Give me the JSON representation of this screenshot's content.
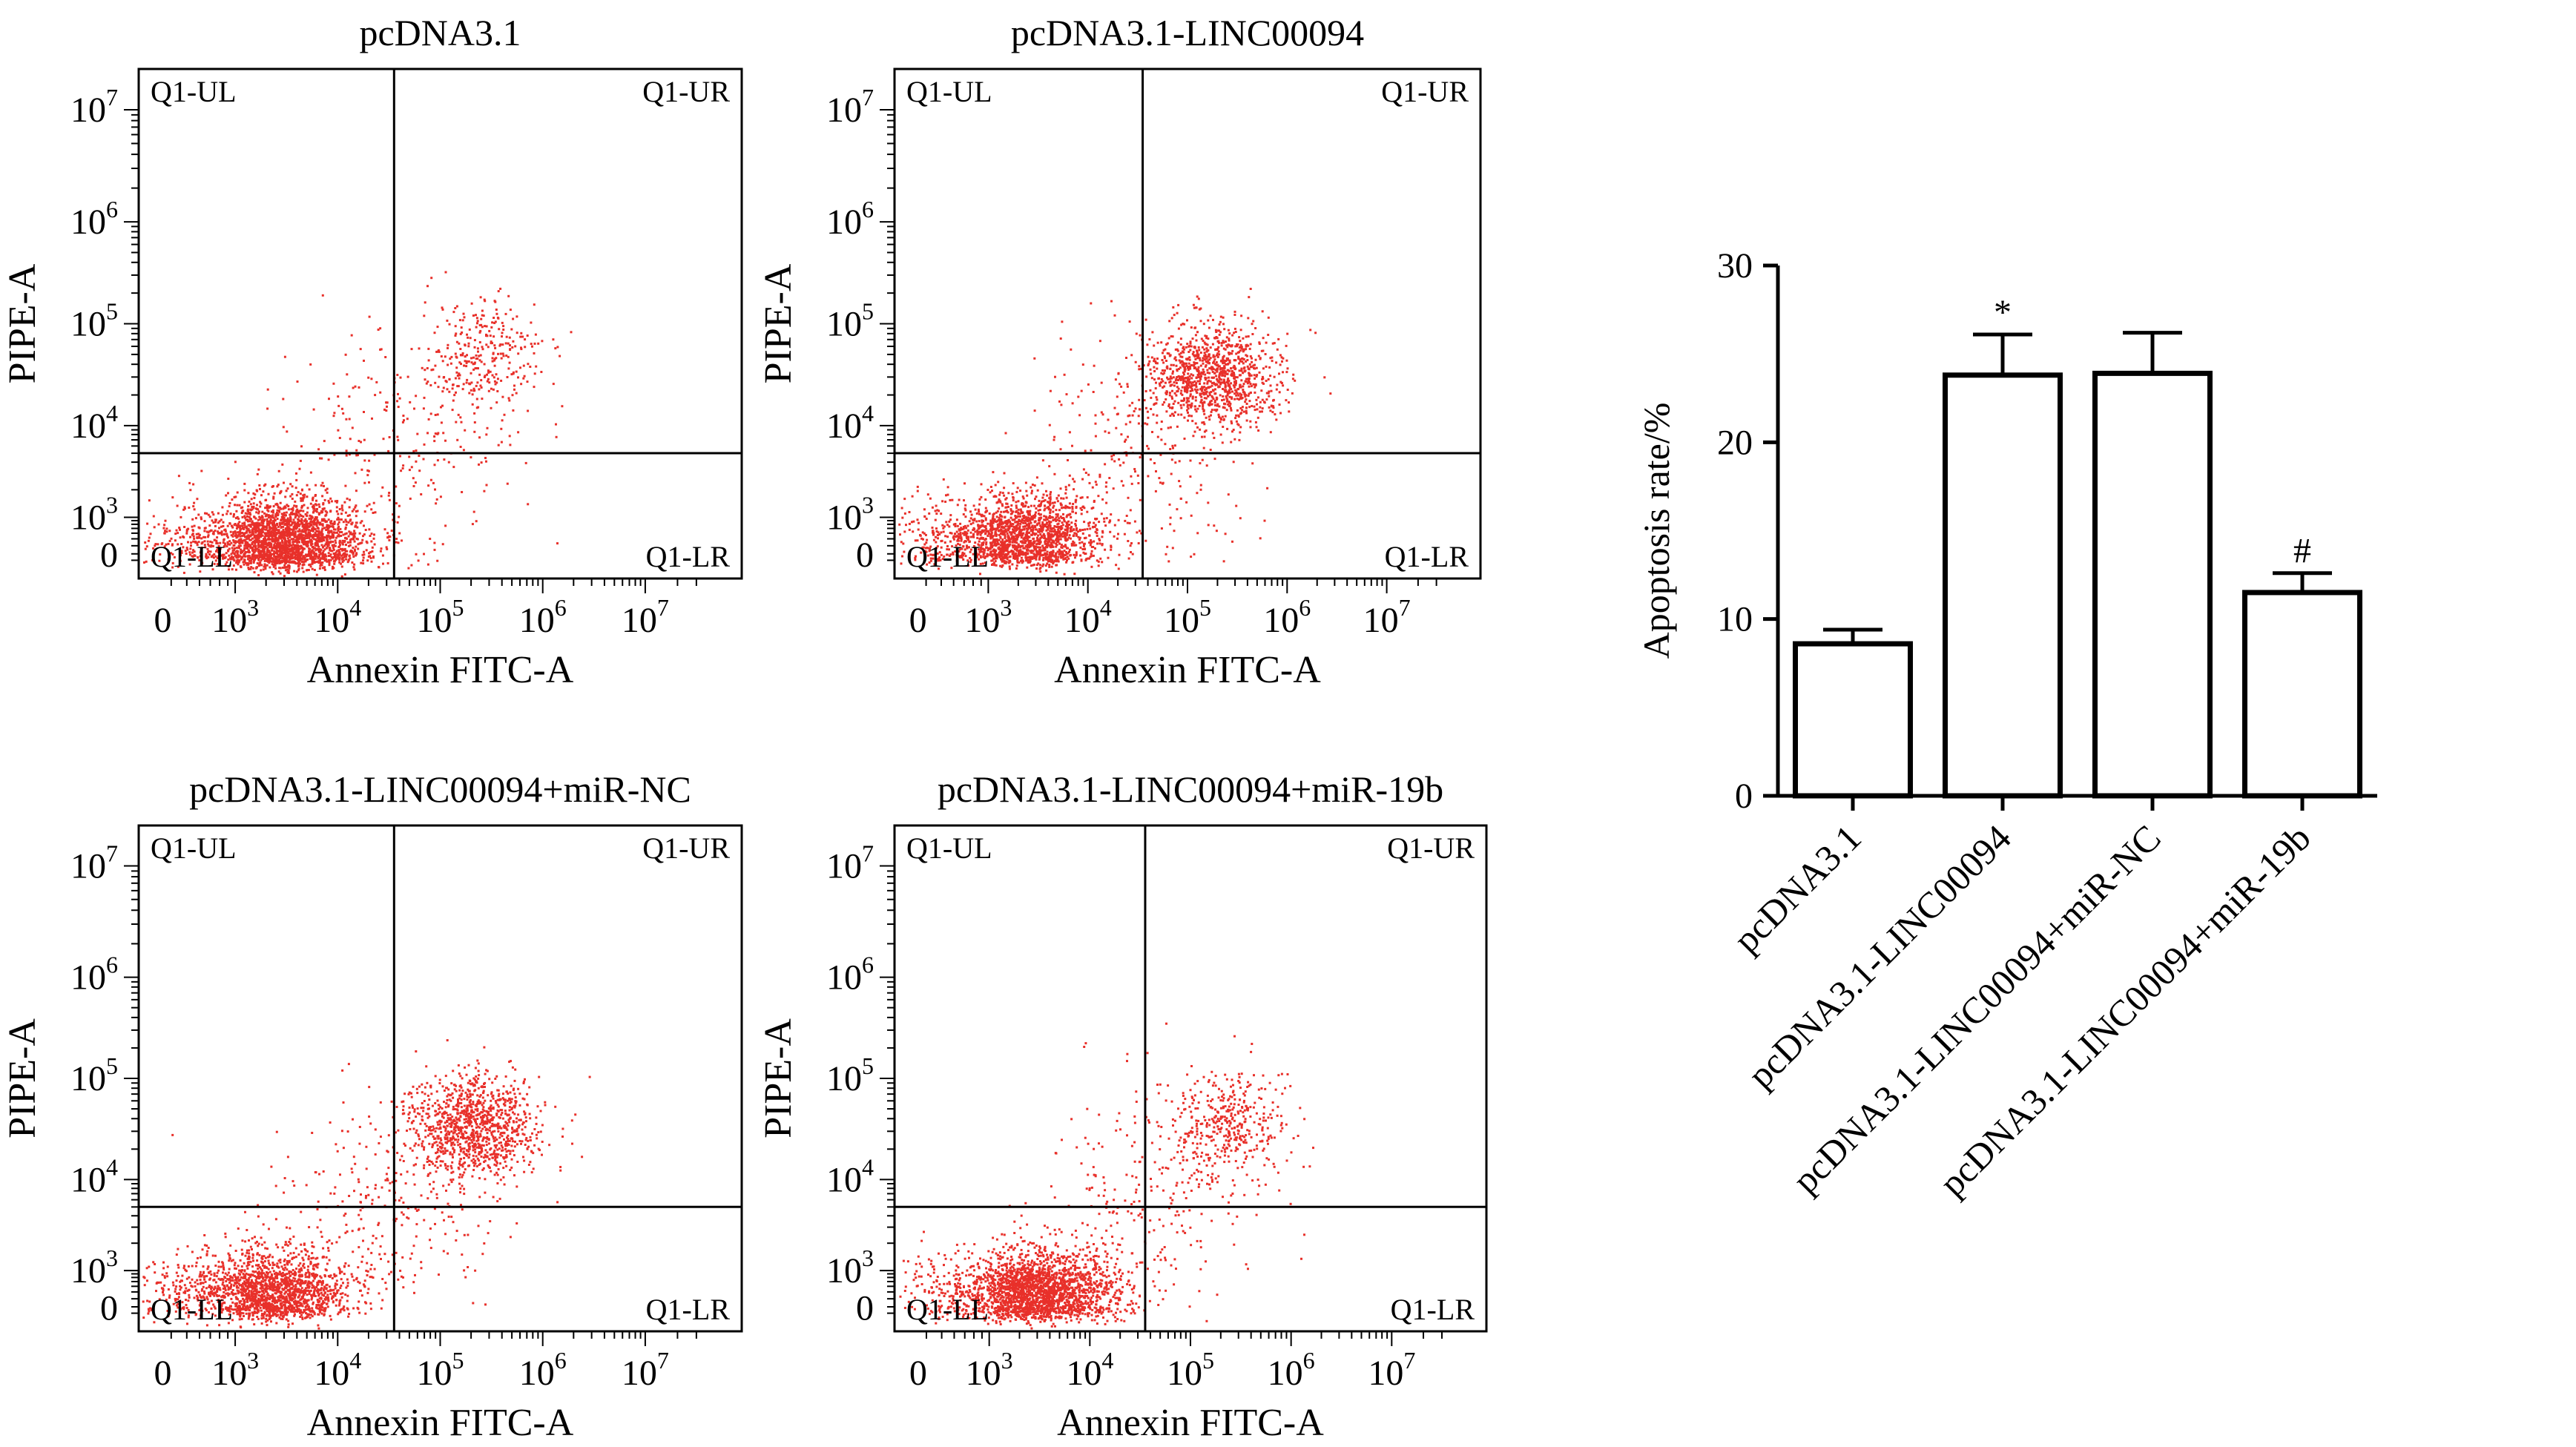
{
  "chart_data": [
    {
      "type": "scatter",
      "title": "pcDNA3.1",
      "xlabel": "Annexin FITC-A",
      "ylabel": "PIPE-A",
      "xticks": [
        {
          "base": "0",
          "exp": ""
        },
        {
          "base": "10",
          "exp": "3"
        },
        {
          "base": "10",
          "exp": "4"
        },
        {
          "base": "10",
          "exp": "5"
        },
        {
          "base": "10",
          "exp": "6"
        },
        {
          "base": "10",
          "exp": "7"
        }
      ],
      "yticks": [
        {
          "base": "0",
          "exp": ""
        },
        {
          "base": "10",
          "exp": "3"
        },
        {
          "base": "10",
          "exp": "4"
        },
        {
          "base": "10",
          "exp": "5"
        },
        {
          "base": "10",
          "exp": "6"
        },
        {
          "base": "10",
          "exp": "7"
        }
      ],
      "quadrants": {
        "ul": "Q1-UL",
        "ur": "Q1-UR",
        "ll": "Q1-LL",
        "lr": "Q1-LR"
      },
      "gate": {
        "x_decade": 4.55,
        "y_decade": 3.7
      },
      "point_color": "#e8302a",
      "clusters": [
        {
          "cx_decade": 3.45,
          "cy_decade": 2.7,
          "sx": 0.42,
          "sy": 0.28,
          "n": 2600
        },
        {
          "cx_decade": 5.4,
          "cy_decade": 4.7,
          "sx": 0.3,
          "sy": 0.26,
          "n": 320
        },
        {
          "cx_decade": 4.6,
          "cy_decade": 3.9,
          "sx": 0.55,
          "sy": 0.55,
          "n": 220
        }
      ]
    },
    {
      "type": "scatter",
      "title": "pcDNA3.1-LINC00094",
      "xlabel": "Annexin FITC-A",
      "ylabel": "PIPE-A",
      "xticks": [
        {
          "base": "0",
          "exp": ""
        },
        {
          "base": "10",
          "exp": "3"
        },
        {
          "base": "10",
          "exp": "4"
        },
        {
          "base": "10",
          "exp": "5"
        },
        {
          "base": "10",
          "exp": "6"
        },
        {
          "base": "10",
          "exp": "7"
        }
      ],
      "yticks": [
        {
          "base": "0",
          "exp": ""
        },
        {
          "base": "10",
          "exp": "3"
        },
        {
          "base": "10",
          "exp": "4"
        },
        {
          "base": "10",
          "exp": "5"
        },
        {
          "base": "10",
          "exp": "6"
        },
        {
          "base": "10",
          "exp": "7"
        }
      ],
      "quadrants": {
        "ul": "Q1-UL",
        "ur": "Q1-UR",
        "ll": "Q1-LL",
        "lr": "Q1-LR"
      },
      "gate": {
        "x_decade": 4.55,
        "y_decade": 3.7
      },
      "point_color": "#e8302a",
      "clusters": [
        {
          "cx_decade": 3.3,
          "cy_decade": 2.75,
          "sx": 0.4,
          "sy": 0.27,
          "n": 1900
        },
        {
          "cx_decade": 5.25,
          "cy_decade": 4.5,
          "sx": 0.33,
          "sy": 0.25,
          "n": 1100
        },
        {
          "cx_decade": 4.5,
          "cy_decade": 3.7,
          "sx": 0.55,
          "sy": 0.55,
          "n": 260
        }
      ]
    },
    {
      "type": "scatter",
      "title": "pcDNA3.1-LINC00094+miR-NC",
      "xlabel": "Annexin FITC-A",
      "ylabel": "PIPE-A",
      "xticks": [
        {
          "base": "0",
          "exp": ""
        },
        {
          "base": "10",
          "exp": "3"
        },
        {
          "base": "10",
          "exp": "4"
        },
        {
          "base": "10",
          "exp": "5"
        },
        {
          "base": "10",
          "exp": "6"
        },
        {
          "base": "10",
          "exp": "7"
        }
      ],
      "yticks": [
        {
          "base": "0",
          "exp": ""
        },
        {
          "base": "10",
          "exp": "3"
        },
        {
          "base": "10",
          "exp": "4"
        },
        {
          "base": "10",
          "exp": "5"
        },
        {
          "base": "10",
          "exp": "6"
        },
        {
          "base": "10",
          "exp": "7"
        }
      ],
      "quadrants": {
        "ul": "Q1-UL",
        "ur": "Q1-UR",
        "ll": "Q1-LL",
        "lr": "Q1-LR"
      },
      "gate": {
        "x_decade": 4.55,
        "y_decade": 3.7
      },
      "point_color": "#e8302a",
      "clusters": [
        {
          "cx_decade": 3.3,
          "cy_decade": 2.72,
          "sx": 0.4,
          "sy": 0.27,
          "n": 1900
        },
        {
          "cx_decade": 5.3,
          "cy_decade": 4.55,
          "sx": 0.33,
          "sy": 0.25,
          "n": 1100
        },
        {
          "cx_decade": 4.5,
          "cy_decade": 3.7,
          "sx": 0.55,
          "sy": 0.55,
          "n": 260
        }
      ]
    },
    {
      "type": "scatter",
      "title": "pcDNA3.1-LINC00094+miR-19b",
      "xlabel": "Annexin FITC-A",
      "ylabel": "PIPE-A",
      "xticks": [
        {
          "base": "0",
          "exp": ""
        },
        {
          "base": "10",
          "exp": "3"
        },
        {
          "base": "10",
          "exp": "4"
        },
        {
          "base": "10",
          "exp": "5"
        },
        {
          "base": "10",
          "exp": "6"
        },
        {
          "base": "10",
          "exp": "7"
        }
      ],
      "yticks": [
        {
          "base": "0",
          "exp": ""
        },
        {
          "base": "10",
          "exp": "3"
        },
        {
          "base": "10",
          "exp": "4"
        },
        {
          "base": "10",
          "exp": "5"
        },
        {
          "base": "10",
          "exp": "6"
        },
        {
          "base": "10",
          "exp": "7"
        }
      ],
      "quadrants": {
        "ul": "Q1-UL",
        "ur": "Q1-UR",
        "ll": "Q1-LL",
        "lr": "Q1-LR"
      },
      "gate": {
        "x_decade": 4.55,
        "y_decade": 3.7
      },
      "point_color": "#e8302a",
      "clusters": [
        {
          "cx_decade": 3.45,
          "cy_decade": 2.72,
          "sx": 0.42,
          "sy": 0.28,
          "n": 2400
        },
        {
          "cx_decade": 5.35,
          "cy_decade": 4.55,
          "sx": 0.3,
          "sy": 0.28,
          "n": 420
        },
        {
          "cx_decade": 4.6,
          "cy_decade": 3.8,
          "sx": 0.55,
          "sy": 0.55,
          "n": 220
        }
      ]
    },
    {
      "type": "bar",
      "title": "",
      "xlabel": "",
      "ylabel": "Apoptosis rate/%",
      "ylim": [
        0,
        30
      ],
      "yticks": [
        0,
        10,
        20,
        30
      ],
      "categories": [
        "pcDNA3.1",
        "pcDNA3.1-LINC00094",
        "pcDNA3.1-LINC00094+miR-NC",
        "pcDNA3.1-LINC00094+miR-19b"
      ],
      "values": [
        8.6,
        23.8,
        23.9,
        11.5
      ],
      "errors": [
        0.8,
        2.3,
        2.3,
        1.1
      ],
      "annotations": [
        "",
        "*",
        "",
        "#"
      ]
    }
  ]
}
